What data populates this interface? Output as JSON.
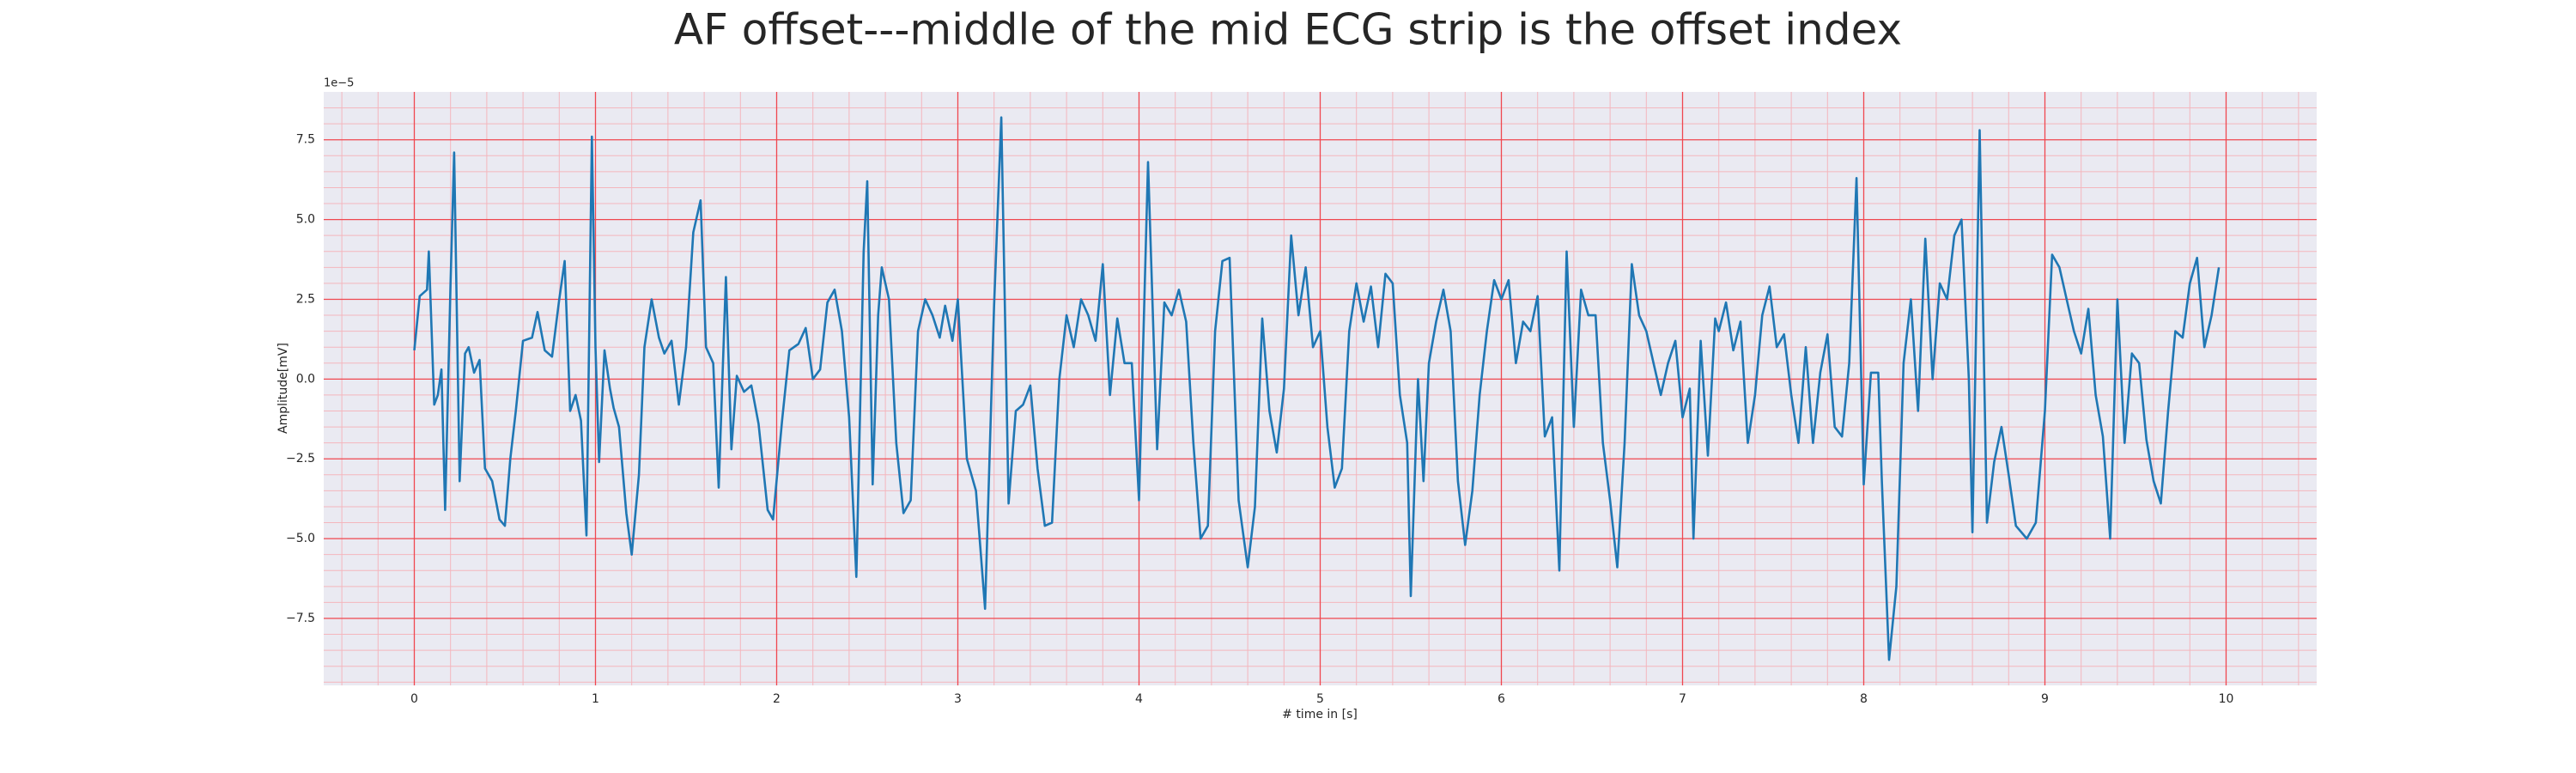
{
  "chart_data": {
    "type": "line",
    "title": "AF offset---middle of the mid ECG strip is the offset index",
    "xlabel": "# time in [s]",
    "ylabel": "Amplitude[mV]",
    "y_offset_label": "1e−5",
    "color": "#1f77b4",
    "grid": true,
    "xlim": [
      -0.5,
      10.5
    ],
    "ylim": [
      -9.6,
      9.0
    ],
    "xticks": [
      0,
      1,
      2,
      3,
      4,
      5,
      6,
      7,
      8,
      9,
      10
    ],
    "yticks": [
      {
        "value": -7.5,
        "label": "−7.5"
      },
      {
        "value": -5,
        "label": "−5.0"
      },
      {
        "value": -2.5,
        "label": "−2.5"
      },
      {
        "value": 0,
        "label": "0.0"
      },
      {
        "value": 2.5,
        "label": "2.5"
      },
      {
        "value": 5,
        "label": "5.0"
      },
      {
        "value": 7.5,
        "label": "7.5"
      }
    ],
    "xminorticks": [
      -0.4,
      -0.2,
      0.2,
      0.4,
      0.6,
      0.8,
      1.2,
      1.4,
      1.6,
      1.8,
      2.2,
      2.4,
      2.6,
      2.8,
      3.2,
      3.4,
      3.6,
      3.8,
      4.2,
      4.4,
      4.6,
      4.8,
      5.2,
      5.4,
      5.6,
      5.8,
      6.2,
      6.4,
      6.6,
      6.8,
      7.2,
      7.4,
      7.6,
      7.8,
      8.2,
      8.4,
      8.6,
      8.8,
      9.2,
      9.4,
      9.6,
      9.8,
      10.2,
      10.4
    ],
    "yminorticks": [
      -9.5,
      -9,
      -8.5,
      -8,
      -7,
      -6.5,
      -6,
      -5.5,
      -4.5,
      -4,
      -3.5,
      -3,
      -2,
      -1.5,
      -1,
      -0.5,
      0.5,
      1,
      1.5,
      2,
      3,
      3.5,
      4,
      4.5,
      5.5,
      6,
      6.5,
      7,
      8,
      8.5
    ],
    "x": [
      0,
      0.03,
      0.07,
      0.08,
      0.11,
      0.13,
      0.15,
      0.17,
      0.2,
      0.22,
      0.25,
      0.28,
      0.3,
      0.33,
      0.36,
      0.39,
      0.43,
      0.47,
      0.5,
      0.53,
      0.56,
      0.6,
      0.65,
      0.68,
      0.72,
      0.76,
      0.8,
      0.83,
      0.86,
      0.89,
      0.92,
      0.95,
      0.98,
      1.0,
      1.02,
      1.05,
      1.08,
      1.1,
      1.13,
      1.17,
      1.2,
      1.24,
      1.27,
      1.31,
      1.35,
      1.38,
      1.42,
      1.46,
      1.5,
      1.54,
      1.58,
      1.61,
      1.65,
      1.68,
      1.72,
      1.75,
      1.78,
      1.82,
      1.86,
      1.9,
      1.95,
      1.98,
      2.03,
      2.07,
      2.12,
      2.16,
      2.2,
      2.24,
      2.28,
      2.32,
      2.36,
      2.4,
      2.44,
      2.48,
      2.5,
      2.53,
      2.56,
      2.58,
      2.62,
      2.66,
      2.7,
      2.74,
      2.78,
      2.82,
      2.86,
      2.9,
      2.93,
      2.97,
      3.0,
      3.05,
      3.1,
      3.15,
      3.2,
      3.24,
      3.28,
      3.32,
      3.36,
      3.4,
      3.44,
      3.48,
      3.52,
      3.56,
      3.6,
      3.64,
      3.68,
      3.72,
      3.76,
      3.8,
      3.84,
      3.88,
      3.92,
      3.96,
      4.0,
      4.05,
      4.1,
      4.14,
      4.18,
      4.22,
      4.26,
      4.3,
      4.34,
      4.38,
      4.42,
      4.46,
      4.5,
      4.55,
      4.6,
      4.64,
      4.68,
      4.72,
      4.76,
      4.8,
      4.84,
      4.88,
      4.92,
      4.96,
      5.0,
      5.04,
      5.08,
      5.12,
      5.16,
      5.2,
      5.24,
      5.28,
      5.32,
      5.36,
      5.4,
      5.44,
      5.48,
      5.5,
      5.54,
      5.57,
      5.6,
      5.64,
      5.68,
      5.72,
      5.76,
      5.8,
      5.84,
      5.88,
      5.92,
      5.96,
      6.0,
      6.04,
      6.08,
      6.12,
      6.16,
      6.2,
      6.24,
      6.28,
      6.32,
      6.36,
      6.4,
      6.44,
      6.48,
      6.52,
      6.56,
      6.6,
      6.64,
      6.68,
      6.72,
      6.76,
      6.8,
      6.84,
      6.88,
      6.92,
      6.96,
      7.0,
      7.04,
      7.06,
      7.1,
      7.14,
      7.18,
      7.2,
      7.24,
      7.28,
      7.32,
      7.36,
      7.4,
      7.44,
      7.48,
      7.52,
      7.56,
      7.6,
      7.64,
      7.68,
      7.72,
      7.76,
      7.8,
      7.84,
      7.88,
      7.92,
      7.96,
      8.0,
      8.04,
      8.08,
      8.1,
      8.14,
      8.18,
      8.22,
      8.26,
      8.3,
      8.34,
      8.38,
      8.42,
      8.46,
      8.5,
      8.54,
      8.58,
      8.6,
      8.64,
      8.68,
      8.72,
      8.76,
      8.8,
      8.84,
      8.9,
      8.95,
      9.0,
      9.04,
      9.08,
      9.12,
      9.16,
      9.2,
      9.24,
      9.28,
      9.32,
      9.36,
      9.4,
      9.44,
      9.48,
      9.52,
      9.56,
      9.6,
      9.64,
      9.68,
      9.72,
      9.76,
      9.8,
      9.84,
      9.88,
      9.92,
      9.96
    ],
    "values": [
      0.9,
      2.6,
      2.8,
      4.0,
      -0.8,
      -0.5,
      0.3,
      -4.1,
      3,
      7.1,
      -3.2,
      0.8,
      1.0,
      0.2,
      0.6,
      -2.8,
      -3.2,
      -4.4,
      -4.6,
      -2.5,
      -1.0,
      1.2,
      1.3,
      2.1,
      0.9,
      0.7,
      2.5,
      3.7,
      -1.0,
      -0.5,
      -1.3,
      -4.9,
      7.6,
      1.0,
      -2.6,
      0.9,
      -0.3,
      -0.9,
      -1.5,
      -4.2,
      -5.5,
      -3.0,
      1.0,
      2.5,
      1.3,
      0.8,
      1.2,
      -0.8,
      1.0,
      4.6,
      5.6,
      1.0,
      0.5,
      -3.4,
      3.2,
      -2.2,
      0.1,
      -0.4,
      -0.2,
      -1.4,
      -4.1,
      -4.4,
      -1.3,
      0.9,
      1.1,
      1.6,
      0.0,
      0.3,
      2.4,
      2.8,
      1.5,
      -1.2,
      -6.2,
      4.0,
      6.2,
      -3.3,
      2.0,
      3.5,
      2.5,
      -2.0,
      -4.2,
      -3.8,
      1.5,
      2.5,
      2.0,
      1.3,
      2.3,
      1.2,
      2.5,
      -2.5,
      -3.5,
      -7.2,
      2.3,
      8.2,
      -3.9,
      -1.0,
      -0.8,
      -0.2,
      -2.8,
      -4.6,
      -4.5,
      0.0,
      2.0,
      1.0,
      2.5,
      2.0,
      1.2,
      3.6,
      -0.5,
      1.9,
      0.5,
      0.5,
      -3.8,
      6.8,
      -2.2,
      2.4,
      2.0,
      2.8,
      1.8,
      -2.0,
      -5.0,
      -4.6,
      1.5,
      3.7,
      3.8,
      -3.8,
      -5.9,
      -4.0,
      1.9,
      -1.0,
      -2.3,
      -0.3,
      4.5,
      2.0,
      3.5,
      1.0,
      1.5,
      -1.5,
      -3.4,
      -2.8,
      1.5,
      3.0,
      1.8,
      2.9,
      1.0,
      3.3,
      3.0,
      -0.5,
      -2.0,
      -6.8,
      0.0,
      -3.2,
      0.5,
      1.8,
      2.8,
      1.5,
      -3.2,
      -5.2,
      -3.5,
      -0.5,
      1.5,
      3.1,
      2.5,
      3.1,
      0.5,
      1.8,
      1.5,
      2.6,
      -1.8,
      -1.2,
      -6.0,
      4.0,
      -1.5,
      2.8,
      2.0,
      2.0,
      -2.0,
      -3.8,
      -5.9,
      -2.0,
      3.6,
      2.0,
      1.5,
      0.5,
      -0.5,
      0.5,
      1.2,
      -1.2,
      -0.3,
      -5.0,
      1.2,
      -2.4,
      1.9,
      1.5,
      2.4,
      0.9,
      1.8,
      -2.0,
      -0.5,
      2.0,
      2.9,
      1.0,
      1.4,
      -0.5,
      -2.0,
      1.0,
      -2.0,
      0.2,
      1.4,
      -1.5,
      -1.8,
      0.5,
      6.3,
      -3.3,
      0.2,
      0.2,
      -3.2,
      -8.8,
      -6.5,
      0.5,
      2.5,
      -1.0,
      4.4,
      0.0,
      3.0,
      2.5,
      4.5,
      5.0,
      0.0,
      -4.8,
      7.8,
      -4.5,
      -2.6,
      -1.5,
      -3.0,
      -4.6,
      -5.0,
      -4.5,
      -1.0,
      3.9,
      3.5,
      2.5,
      1.5,
      0.8,
      2.2,
      -0.5,
      -1.8,
      -5.0,
      2.5,
      -2.0,
      0.8,
      0.5,
      -1.9,
      -3.2,
      -3.9,
      -1.0,
      1.5,
      1.3,
      3.0,
      3.8,
      1.0,
      2.0,
      3.5
    ]
  }
}
